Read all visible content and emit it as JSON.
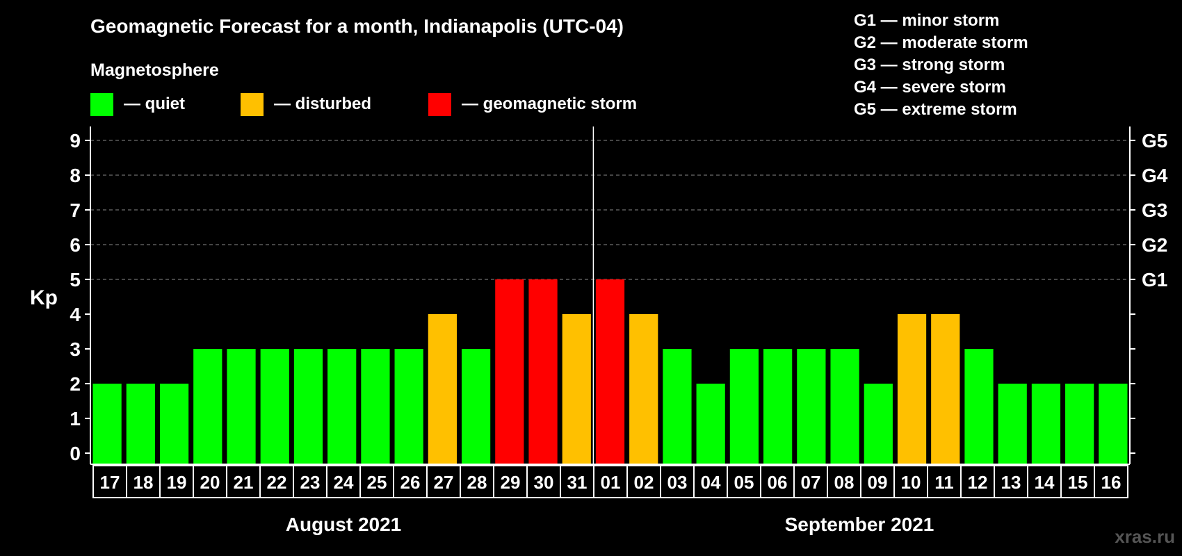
{
  "chart_data": {
    "type": "bar",
    "title": "Geomagnetic Forecast for a month, Indianapolis (UTC-04)",
    "legend": {
      "heading": "Magnetosphere",
      "items": [
        {
          "label": "— quiet",
          "color": "#00ff00"
        },
        {
          "label": "— disturbed",
          "color": "#ffc000"
        },
        {
          "label": "— geomagnetic storm",
          "color": "#ff0000"
        }
      ]
    },
    "storm_scale": [
      "G1 — minor storm",
      "G2 — moderate storm",
      "G3 — strong storm",
      "G4 — severe storm",
      "G5 — extreme storm"
    ],
    "ylabel": "Kp",
    "ylim": [
      0,
      9
    ],
    "yticks": [
      "0",
      "1",
      "2",
      "3",
      "4",
      "5",
      "6",
      "7",
      "8",
      "9"
    ],
    "right_ticks": [
      {
        "kp": 5,
        "label": "G1"
      },
      {
        "kp": 6,
        "label": "G2"
      },
      {
        "kp": 7,
        "label": "G3"
      },
      {
        "kp": 8,
        "label": "G4"
      },
      {
        "kp": 9,
        "label": "G5"
      }
    ],
    "grid": "dashed lines at Kp 5-9",
    "categories": [
      "17",
      "18",
      "19",
      "20",
      "21",
      "22",
      "23",
      "24",
      "25",
      "26",
      "27",
      "28",
      "29",
      "30",
      "31",
      "01",
      "02",
      "03",
      "04",
      "05",
      "06",
      "07",
      "08",
      "09",
      "10",
      "11",
      "12",
      "13",
      "14",
      "15",
      "16"
    ],
    "values": [
      2,
      2,
      2,
      3,
      3,
      3,
      3,
      3,
      3,
      3,
      4,
      3,
      5,
      5,
      4,
      5,
      4,
      3,
      2,
      3,
      3,
      3,
      3,
      2,
      4,
      4,
      3,
      2,
      2,
      2,
      2
    ],
    "colors": {
      "quiet": "#00ff00",
      "disturbed": "#ffc000",
      "storm": "#ff0000"
    },
    "months": [
      {
        "label": "August 2021",
        "from": "17",
        "to": "31"
      },
      {
        "label": "September 2021",
        "from": "01",
        "to": "16"
      }
    ]
  },
  "watermark": "xras.ru"
}
